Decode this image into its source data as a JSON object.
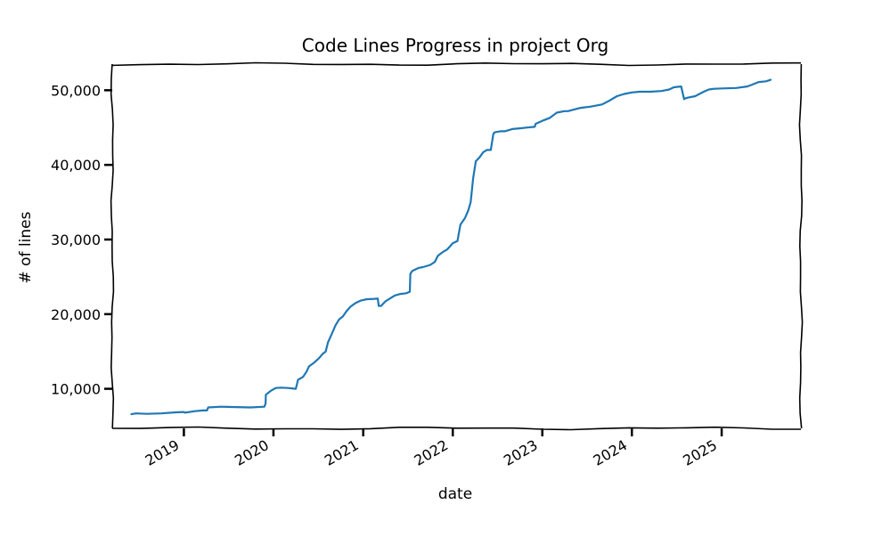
{
  "chart_data": {
    "type": "line",
    "title": "Code Lines Progress in project Org",
    "xlabel": "date",
    "ylabel": "# of lines",
    "x_ticks": [
      "2019",
      "2020",
      "2021",
      "2022",
      "2023",
      "2024",
      "2025"
    ],
    "y_ticks": [
      10000,
      20000,
      30000,
      40000,
      50000
    ],
    "y_tick_labels": [
      "10,000",
      "20,000",
      "30,000",
      "40,000",
      "50,000"
    ],
    "ylim": [
      4700,
      53500
    ],
    "xlim": [
      "2018-03-15",
      "2025-11-20"
    ],
    "grid": false,
    "series": [
      {
        "color": "#1f77b4",
        "x": [
          "2018-06-01",
          "2018-06-20",
          "2018-08-01",
          "2018-10-01",
          "2018-12-01",
          "2019-01-01",
          "2019-01-05",
          "2019-02-15",
          "2019-03-20",
          "2019-04-05",
          "2019-04-10",
          "2019-06-01",
          "2019-08-01",
          "2019-10-01",
          "2019-11-25",
          "2019-11-30",
          "2019-12-01",
          "2019-12-20",
          "2020-01-10",
          "2020-02-01",
          "2020-03-01",
          "2020-04-01",
          "2020-04-05",
          "2020-04-10",
          "2020-05-01",
          "2020-05-15",
          "2020-05-25",
          "2020-06-15",
          "2020-07-05",
          "2020-07-20",
          "2020-08-01",
          "2020-08-10",
          "2020-08-25",
          "2020-09-10",
          "2020-09-25",
          "2020-10-10",
          "2020-10-25",
          "2020-11-10",
          "2020-12-01",
          "2020-12-20",
          "2021-01-15",
          "2021-02-15",
          "2021-03-01",
          "2021-03-05",
          "2021-03-15",
          "2021-04-01",
          "2021-04-20",
          "2021-05-10",
          "2021-06-01",
          "2021-06-25",
          "2021-07-10",
          "2021-07-12",
          "2021-07-20",
          "2021-08-15",
          "2021-09-01",
          "2021-10-01",
          "2021-10-20",
          "2021-11-01",
          "2021-11-20",
          "2021-12-10",
          "2022-01-01",
          "2022-01-20",
          "2022-02-01",
          "2022-02-20",
          "2022-03-05",
          "2022-03-15",
          "2022-03-25",
          "2022-04-05",
          "2022-04-20",
          "2022-05-05",
          "2022-05-20",
          "2022-06-05",
          "2022-06-15",
          "2022-06-18",
          "2022-06-25",
          "2022-07-15",
          "2022-08-01",
          "2022-09-01",
          "2022-10-01",
          "2022-11-01",
          "2022-12-01",
          "2022-12-05",
          "2023-01-01",
          "2023-02-01",
          "2023-03-01",
          "2023-04-01",
          "2023-04-15",
          "2023-06-01",
          "2023-06-20",
          "2023-07-15",
          "2023-09-01",
          "2023-10-01",
          "2023-11-01",
          "2023-12-01",
          "2024-01-01",
          "2024-02-01",
          "2024-03-15",
          "2024-05-01",
          "2024-06-01",
          "2024-06-20",
          "2024-07-20",
          "2024-08-01",
          "2024-08-05",
          "2024-08-15",
          "2024-09-15",
          "2024-10-20",
          "2024-11-10",
          "2024-12-01",
          "2025-01-15",
          "2025-03-01",
          "2025-04-15",
          "2025-05-01",
          "2025-06-01",
          "2025-07-01",
          "2025-07-20"
        ],
        "y": [
          6600,
          6700,
          6650,
          6700,
          6850,
          6900,
          6800,
          7000,
          7100,
          7100,
          7500,
          7600,
          7550,
          7500,
          7600,
          8000,
          9200,
          9700,
          10100,
          10150,
          10100,
          10000,
          10500,
          11200,
          11600,
          12300,
          13000,
          13500,
          14100,
          14700,
          15000,
          16200,
          17300,
          18500,
          19300,
          19700,
          20400,
          21000,
          21500,
          21800,
          22000,
          22050,
          22100,
          21100,
          21100,
          21700,
          22100,
          22500,
          22700,
          22800,
          23000,
          25400,
          25800,
          26200,
          26300,
          26600,
          27000,
          27800,
          28300,
          28700,
          29500,
          29800,
          32000,
          32900,
          33900,
          35000,
          38200,
          40500,
          41000,
          41700,
          42000,
          42000,
          44100,
          44300,
          44400,
          44500,
          44500,
          44800,
          44900,
          45000,
          45100,
          45500,
          45900,
          46300,
          47000,
          47200,
          47200,
          47600,
          47700,
          47800,
          48100,
          48600,
          49200,
          49500,
          49700,
          49800,
          49800,
          49900,
          50100,
          50400,
          50500,
          48800,
          48900,
          49000,
          49200,
          49800,
          50100,
          50200,
          50250,
          50300,
          50500,
          50700,
          51100,
          51200,
          51400
        ]
      }
    ]
  }
}
